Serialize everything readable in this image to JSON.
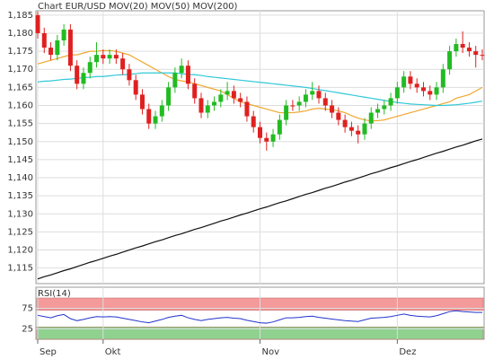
{
  "chart_data": [
    {
      "type": "candlestick",
      "title": "Chart EUR/USD",
      "title_color": "#e02020",
      "categories": [
        "Sep",
        null,
        null,
        null,
        null,
        null,
        null,
        null,
        null,
        null,
        "Okt",
        null,
        null,
        null,
        null,
        null,
        null,
        null,
        null,
        null,
        null,
        null,
        null,
        null,
        null,
        null,
        null,
        null,
        null,
        null,
        null,
        null,
        null,
        null,
        "Nov",
        null,
        null,
        null,
        null,
        null,
        null,
        null,
        null,
        null,
        null,
        null,
        null,
        null,
        null,
        null,
        null,
        null,
        null,
        null,
        null,
        "Dez",
        null,
        null,
        null,
        null,
        null,
        null,
        null,
        null,
        null,
        null,
        null,
        null,
        null
      ],
      "open": [
        1.185,
        1.18,
        1.176,
        1.174,
        1.178,
        1.181,
        1.171,
        1.166,
        1.169,
        1.172,
        1.174,
        1.173,
        1.174,
        1.173,
        1.17,
        1.167,
        1.163,
        1.159,
        1.155,
        1.157,
        1.16,
        1.165,
        1.169,
        1.171,
        1.166,
        1.162,
        1.158,
        1.16,
        1.161,
        1.163,
        1.164,
        1.162,
        1.161,
        1.157,
        1.154,
        1.151,
        1.15,
        1.152,
        1.156,
        1.16,
        1.16,
        1.161,
        1.163,
        1.164,
        1.162,
        1.16,
        1.158,
        1.156,
        1.154,
        1.153,
        1.152,
        1.155,
        1.158,
        1.159,
        1.16,
        1.162,
        1.165,
        1.168,
        1.166,
        1.165,
        1.164,
        1.163,
        1.165,
        1.17,
        1.175,
        1.177,
        1.176,
        1.175,
        1.174
      ],
      "high": [
        1.186,
        1.1815,
        1.1775,
        1.1795,
        1.1825,
        1.1825,
        1.1725,
        1.1705,
        1.1735,
        1.1775,
        1.1755,
        1.1755,
        1.1755,
        1.1745,
        1.1715,
        1.1685,
        1.1645,
        1.1605,
        1.1585,
        1.1615,
        1.1665,
        1.1705,
        1.173,
        1.1725,
        1.1675,
        1.1635,
        1.1615,
        1.1625,
        1.1645,
        1.1665,
        1.1655,
        1.1635,
        1.1625,
        1.1585,
        1.1555,
        1.1525,
        1.1535,
        1.1575,
        1.1615,
        1.1615,
        1.1625,
        1.1645,
        1.1665,
        1.1655,
        1.1635,
        1.1615,
        1.1595,
        1.1575,
        1.1555,
        1.1545,
        1.1565,
        1.1595,
        1.1605,
        1.1615,
        1.1635,
        1.1665,
        1.1695,
        1.1695,
        1.1675,
        1.1665,
        1.1655,
        1.1665,
        1.1715,
        1.1765,
        1.1785,
        1.1805,
        1.1775,
        1.1765,
        1.1755
      ],
      "low": [
        1.1785,
        1.1745,
        1.1725,
        1.1725,
        1.1765,
        1.1695,
        1.1645,
        1.1645,
        1.1675,
        1.1705,
        1.1715,
        1.1715,
        1.1715,
        1.1685,
        1.1655,
        1.1615,
        1.1575,
        1.1535,
        1.1535,
        1.1555,
        1.1585,
        1.1635,
        1.1675,
        1.1645,
        1.1605,
        1.1565,
        1.1565,
        1.1585,
        1.1595,
        1.1615,
        1.1605,
        1.1595,
        1.1555,
        1.1525,
        1.1495,
        1.1475,
        1.1485,
        1.1505,
        1.1545,
        1.1585,
        1.1585,
        1.1595,
        1.1615,
        1.1605,
        1.1585,
        1.1565,
        1.1545,
        1.1525,
        1.1515,
        1.1495,
        1.1505,
        1.1535,
        1.1565,
        1.1575,
        1.1585,
        1.1605,
        1.1635,
        1.1645,
        1.1635,
        1.1625,
        1.1615,
        1.1615,
        1.1635,
        1.1685,
        1.1735,
        1.1745,
        1.1735,
        1.1705,
        1.1725
      ],
      "close": [
        1.18,
        1.176,
        1.174,
        1.178,
        1.181,
        1.171,
        1.166,
        1.169,
        1.172,
        1.174,
        1.173,
        1.174,
        1.173,
        1.17,
        1.167,
        1.163,
        1.159,
        1.155,
        1.157,
        1.16,
        1.165,
        1.169,
        1.171,
        1.166,
        1.162,
        1.158,
        1.16,
        1.161,
        1.163,
        1.164,
        1.162,
        1.161,
        1.157,
        1.154,
        1.151,
        1.15,
        1.152,
        1.156,
        1.16,
        1.16,
        1.161,
        1.163,
        1.164,
        1.162,
        1.16,
        1.158,
        1.156,
        1.154,
        1.153,
        1.152,
        1.155,
        1.158,
        1.159,
        1.16,
        1.162,
        1.165,
        1.168,
        1.166,
        1.165,
        1.164,
        1.163,
        1.165,
        1.17,
        1.175,
        1.177,
        1.176,
        1.175,
        1.174,
        1.174
      ],
      "up_color": "#22bb22",
      "down_color": "#e02020",
      "series": [
        {
          "name": "MOV(20)",
          "color": "#f0a830",
          "values": [
            1.1715,
            1.172,
            1.1725,
            1.173,
            1.1735,
            1.174,
            1.174,
            1.1745,
            1.175,
            1.175,
            1.1752,
            1.1752,
            1.175,
            1.1745,
            1.174,
            1.173,
            1.172,
            1.171,
            1.17,
            1.169,
            1.168,
            1.1672,
            1.1668,
            1.1665,
            1.166,
            1.1655,
            1.165,
            1.1645,
            1.164,
            1.163,
            1.162,
            1.161,
            1.1605,
            1.16,
            1.1595,
            1.159,
            1.1585,
            1.158,
            1.158,
            1.158,
            1.1582,
            1.1585,
            1.159,
            1.1592,
            1.159,
            1.1588,
            1.1585,
            1.158,
            1.1572,
            1.1565,
            1.156,
            1.1557,
            1.1558,
            1.156,
            1.1565,
            1.157,
            1.1575,
            1.158,
            1.1585,
            1.159,
            1.1595,
            1.16,
            1.1605,
            1.161,
            1.162,
            1.1625,
            1.163,
            1.164,
            1.165
          ]
        },
        {
          "name": "MOV(50)",
          "color": "#30c8d8",
          "values": [
            1.1665,
            1.1667,
            1.1668,
            1.167,
            1.1672,
            1.1673,
            1.1675,
            1.1677,
            1.1678,
            1.168,
            1.168,
            1.1682,
            1.1684,
            1.1685,
            1.1686,
            1.1688,
            1.169,
            1.169,
            1.169,
            1.169,
            1.169,
            1.169,
            1.1688,
            1.1686,
            1.1685,
            1.1683,
            1.168,
            1.1678,
            1.1676,
            1.1674,
            1.1672,
            1.167,
            1.1668,
            1.1666,
            1.1664,
            1.1662,
            1.166,
            1.1658,
            1.1656,
            1.1654,
            1.1652,
            1.165,
            1.1647,
            1.1644,
            1.1641,
            1.1638,
            1.1635,
            1.1632,
            1.1629,
            1.1626,
            1.1623,
            1.162,
            1.1617,
            1.1614,
            1.1611,
            1.1608,
            1.1606,
            1.1604,
            1.1603,
            1.1602,
            1.1601,
            1.16,
            1.16,
            1.1601,
            1.1602,
            1.1604,
            1.1606,
            1.1609,
            1.1612
          ]
        },
        {
          "name": "MOV(200)",
          "color": "#111111",
          "values": [
            1.112,
            1.1126,
            1.1131,
            1.1137,
            1.1143,
            1.1148,
            1.1154,
            1.116,
            1.1166,
            1.1171,
            1.1177,
            1.1183,
            1.1188,
            1.1194,
            1.12,
            1.1206,
            1.1211,
            1.1217,
            1.1223,
            1.1228,
            1.1234,
            1.124,
            1.1245,
            1.1251,
            1.1257,
            1.1262,
            1.1268,
            1.1274,
            1.128,
            1.1285,
            1.1291,
            1.1297,
            1.1302,
            1.1308,
            1.1314,
            1.1319,
            1.1325,
            1.1331,
            1.1336,
            1.1342,
            1.1348,
            1.1354,
            1.1359,
            1.1365,
            1.1371,
            1.1376,
            1.1382,
            1.1388,
            1.1393,
            1.1399,
            1.1405,
            1.1411,
            1.1416,
            1.1422,
            1.1428,
            1.1433,
            1.1439,
            1.1445,
            1.145,
            1.1456,
            1.1462,
            1.1468,
            1.1473,
            1.1479,
            1.1485,
            1.149,
            1.1496,
            1.1502,
            1.1507
          ]
        }
      ],
      "ylim": [
        1.1107,
        1.1862
      ],
      "yticks": [
        {
          "value": 1.115,
          "label": "1,115"
        },
        {
          "value": 1.12,
          "label": "1,120"
        },
        {
          "value": 1.125,
          "label": "1,125"
        },
        {
          "value": 1.13,
          "label": "1,130"
        },
        {
          "value": 1.135,
          "label": "1,135"
        },
        {
          "value": 1.14,
          "label": "1,140"
        },
        {
          "value": 1.145,
          "label": "1,145"
        },
        {
          "value": 1.15,
          "label": "1,150"
        },
        {
          "value": 1.155,
          "label": "1,155"
        },
        {
          "value": 1.16,
          "label": "1,160"
        },
        {
          "value": 1.165,
          "label": "1,165"
        },
        {
          "value": 1.17,
          "label": "1,170"
        },
        {
          "value": 1.175,
          "label": "1,175"
        },
        {
          "value": 1.18,
          "label": "1,180"
        },
        {
          "value": 1.185,
          "label": "1,185"
        }
      ],
      "grid": true
    },
    {
      "type": "line",
      "title": "RSI(14)",
      "color": "#2233cc",
      "values": [
        58,
        55,
        52,
        57,
        60,
        50,
        45,
        48,
        52,
        55,
        54,
        55,
        54,
        51,
        48,
        45,
        42,
        40,
        44,
        48,
        53,
        56,
        58,
        52,
        48,
        45,
        48,
        50,
        52,
        53,
        51,
        50,
        46,
        43,
        40,
        39,
        42,
        47,
        52,
        52,
        53,
        55,
        56,
        53,
        51,
        49,
        47,
        45,
        44,
        43,
        47,
        51,
        52,
        53,
        55,
        58,
        61,
        58,
        56,
        55,
        54,
        57,
        62,
        67,
        69,
        67,
        66,
        65,
        65
      ],
      "bands": [
        {
          "from": 70,
          "to": 100,
          "color": "#f49a9a"
        },
        {
          "from": 0,
          "to": 30,
          "color": "#8fd18f"
        }
      ],
      "ylim": [
        0,
        100
      ],
      "yticks": [
        25,
        75
      ],
      "grid": true
    }
  ]
}
